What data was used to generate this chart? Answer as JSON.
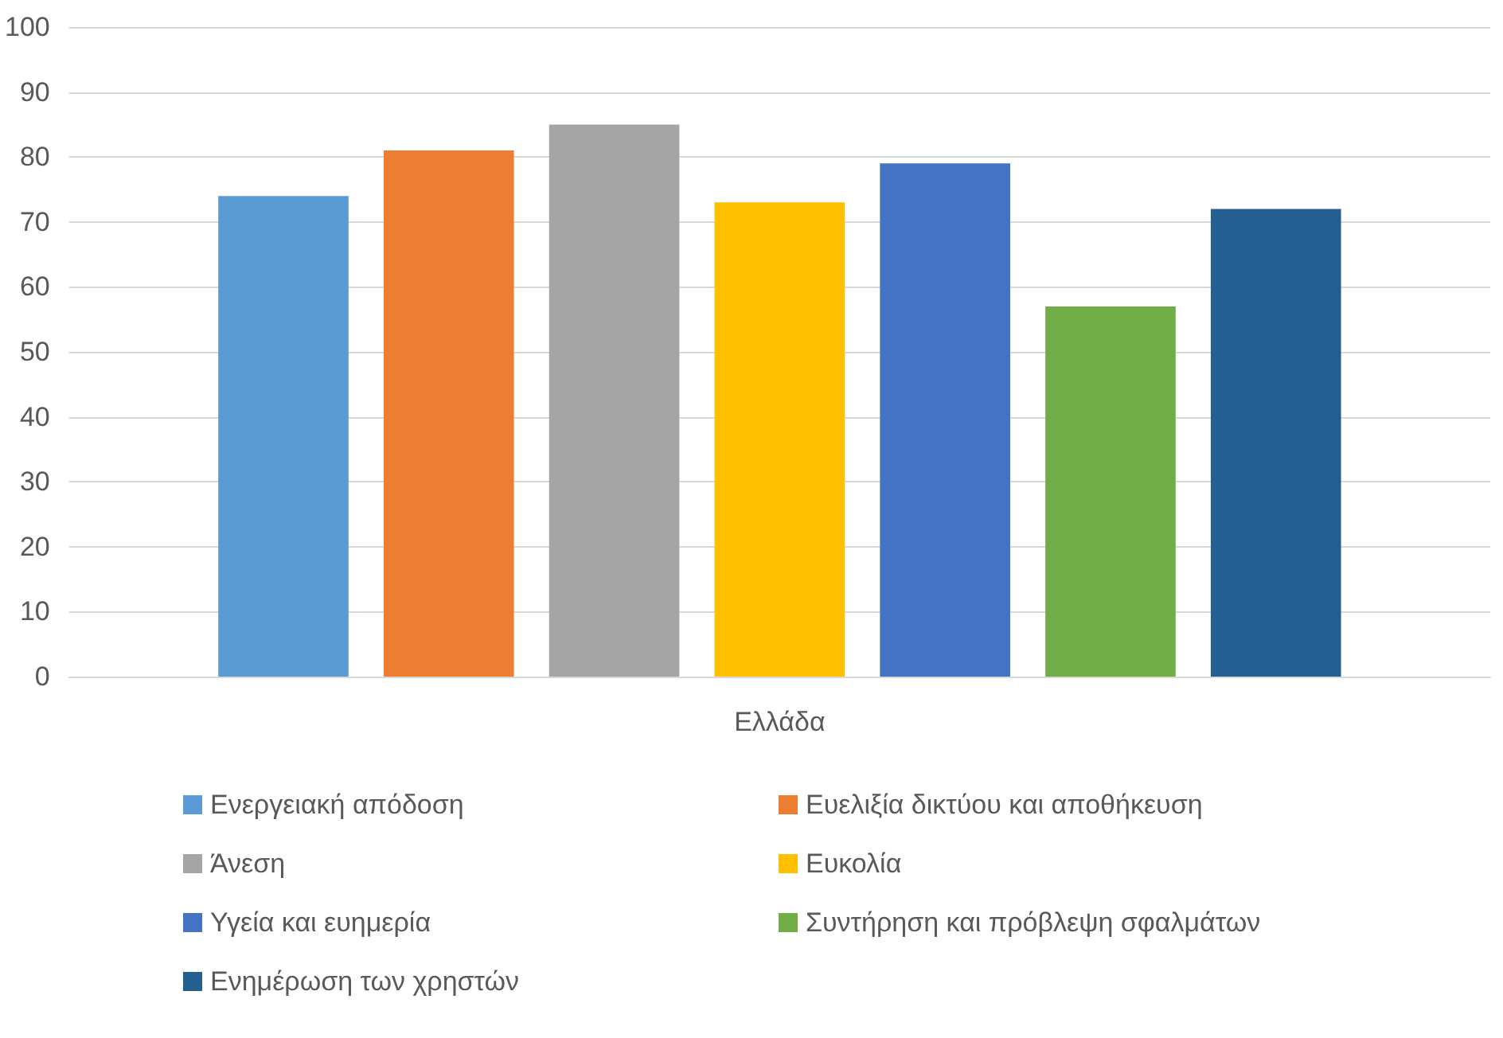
{
  "chart_data": {
    "type": "bar",
    "categories": [
      "Ελλάδα"
    ],
    "series": [
      {
        "name": "Ενεργειακή απόδοση",
        "color": "#5b9bd5",
        "values": [
          74
        ]
      },
      {
        "name": "Ευελιξία δικτύου και αποθήκευση",
        "color": "#ed7d31",
        "values": [
          81
        ]
      },
      {
        "name": "Άνεση",
        "color": "#a5a5a5",
        "values": [
          85
        ]
      },
      {
        "name": "Ευκολία",
        "color": "#ffc000",
        "values": [
          73
        ]
      },
      {
        "name": "Υγεία και ευημερία",
        "color": "#4472c4",
        "values": [
          79
        ]
      },
      {
        "name": "Συντήρηση και πρόβλεψη σφαλμάτων",
        "color": "#70ad47",
        "values": [
          57
        ]
      },
      {
        "name": "Ενημέρωση των χρηστών",
        "color": "#255e91",
        "values": [
          72
        ]
      }
    ],
    "ylim": [
      0,
      100
    ],
    "yticks": [
      0,
      10,
      20,
      30,
      40,
      50,
      60,
      70,
      80,
      90,
      100
    ],
    "grid": "y",
    "legend": "bottom"
  }
}
